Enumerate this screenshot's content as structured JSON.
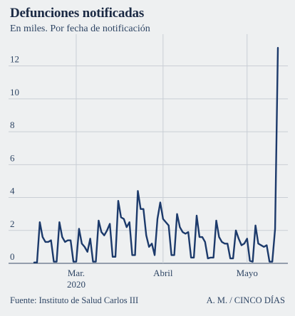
{
  "chart_data": {
    "type": "line",
    "title": "Defunciones notificadas",
    "subtitle": "En miles. Por fecha de notificación",
    "ylim": [
      0,
      13.5
    ],
    "yticks": [
      0,
      2,
      4,
      6,
      8,
      10,
      12
    ],
    "ytick_labels": [
      "0",
      "2",
      "4",
      "6",
      "8",
      "10",
      "12"
    ],
    "xticks": [
      {
        "label": "Mar.",
        "sublabel": "2020",
        "index": 15
      },
      {
        "label": "Abril",
        "sublabel": "",
        "index": 46
      },
      {
        "label": "Mayo",
        "sublabel": "",
        "index": 76
      }
    ],
    "grid": true,
    "line_color": "#1c3a6b",
    "series": [
      {
        "values": [
          0.05,
          0.05,
          2.5,
          1.6,
          1.3,
          1.3,
          1.4,
          0.1,
          0.1,
          2.5,
          1.6,
          1.3,
          1.4,
          1.4,
          0.1,
          0.1,
          2.1,
          1.2,
          1.0,
          0.7,
          1.5,
          0.1,
          0.1,
          2.6,
          1.9,
          1.7,
          2.0,
          2.4,
          0.4,
          0.4,
          3.8,
          2.8,
          2.7,
          2.2,
          2.5,
          0.5,
          0.5,
          4.4,
          3.3,
          3.3,
          1.7,
          1.0,
          1.2,
          0.5,
          2.7,
          3.7,
          2.7,
          2.5,
          2.3,
          0.5,
          0.5,
          3.0,
          2.2,
          1.9,
          1.8,
          1.9,
          0.35,
          0.35,
          2.9,
          1.6,
          1.6,
          1.3,
          0.3,
          0.35,
          0.35,
          2.6,
          1.6,
          1.3,
          1.2,
          1.2,
          0.3,
          0.3,
          2.0,
          1.5,
          1.1,
          1.2,
          1.5,
          0.15,
          0.1,
          2.3,
          1.2,
          1.1,
          1.0,
          1.1,
          0.1,
          0.1,
          2.1,
          13.1
        ]
      }
    ]
  },
  "footer": {
    "source": "Fuente: Instituto de Salud Carlos III",
    "credit": "A. M. / CINCO DÍAS"
  }
}
